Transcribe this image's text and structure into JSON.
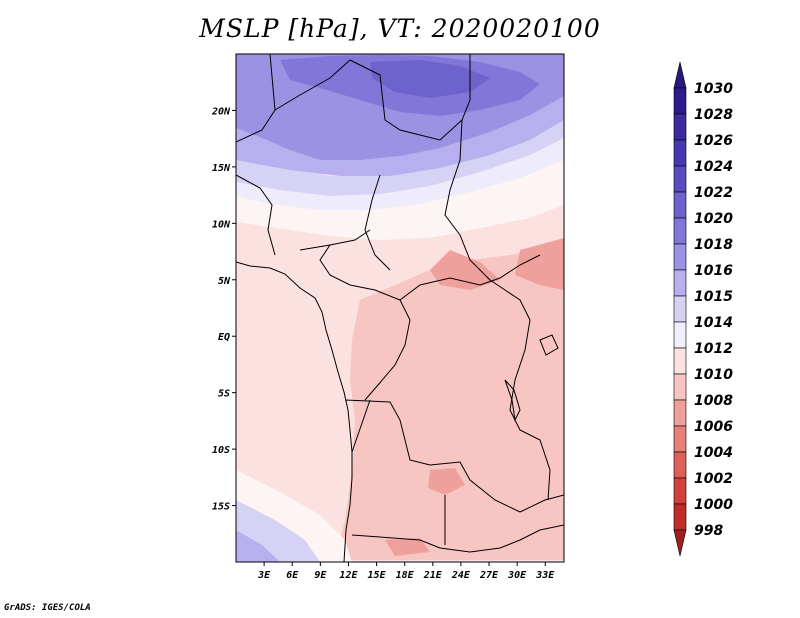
{
  "title": "MSLP [hPa], VT: 2020020100",
  "footer": "GrADS: IGES/COLA",
  "map": {
    "lon_range": [
      0,
      35
    ],
    "lat_range": [
      -20,
      25
    ],
    "lat_ticks": [
      {
        "value": 20,
        "label": "20N"
      },
      {
        "value": 15,
        "label": "15N"
      },
      {
        "value": 10,
        "label": "10N"
      },
      {
        "value": 5,
        "label": "5N"
      },
      {
        "value": 0,
        "label": "EQ"
      },
      {
        "value": -5,
        "label": "5S"
      },
      {
        "value": -10,
        "label": "10S"
      },
      {
        "value": -15,
        "label": "15S"
      }
    ],
    "lon_ticks": [
      {
        "value": 3,
        "label": "3E"
      },
      {
        "value": 6,
        "label": "6E"
      },
      {
        "value": 9,
        "label": "9E"
      },
      {
        "value": 12,
        "label": "12E"
      },
      {
        "value": 15,
        "label": "15E"
      },
      {
        "value": 18,
        "label": "18E"
      },
      {
        "value": 21,
        "label": "21E"
      },
      {
        "value": 24,
        "label": "24E"
      },
      {
        "value": 27,
        "label": "27E"
      },
      {
        "value": 30,
        "label": "30E"
      },
      {
        "value": 33,
        "label": "33E"
      }
    ]
  },
  "colorbar": {
    "levels": [
      {
        "label": "1030",
        "color": "#2e1a8c"
      },
      {
        "label": "1028",
        "color": "#3a2a9e"
      },
      {
        "label": "1026",
        "color": "#4838b0"
      },
      {
        "label": "1024",
        "color": "#5a4cc0"
      },
      {
        "label": "1022",
        "color": "#6e62cc"
      },
      {
        "label": "1020",
        "color": "#8276d8"
      },
      {
        "label": "1018",
        "color": "#9c92e4"
      },
      {
        "label": "1016",
        "color": "#b8b0ee"
      },
      {
        "label": "1015",
        "color": "#d6d2f6"
      },
      {
        "label": "1014",
        "color": "#f0eefc"
      },
      {
        "label": "1012",
        "color": "#fbe1e0"
      },
      {
        "label": "1010",
        "color": "#f7c5c2"
      },
      {
        "label": "1008",
        "color": "#f0a09c"
      },
      {
        "label": "1006",
        "color": "#e8807a"
      },
      {
        "label": "1004",
        "color": "#de5e58"
      },
      {
        "label": "1002",
        "color": "#d2423c"
      },
      {
        "label": "1000",
        "color": "#c02c28"
      },
      {
        "label": "998",
        "color": "#a81e1c"
      }
    ],
    "top_arrow_color": "#2a1880",
    "bottom_arrow_color": "#a0201e"
  }
}
